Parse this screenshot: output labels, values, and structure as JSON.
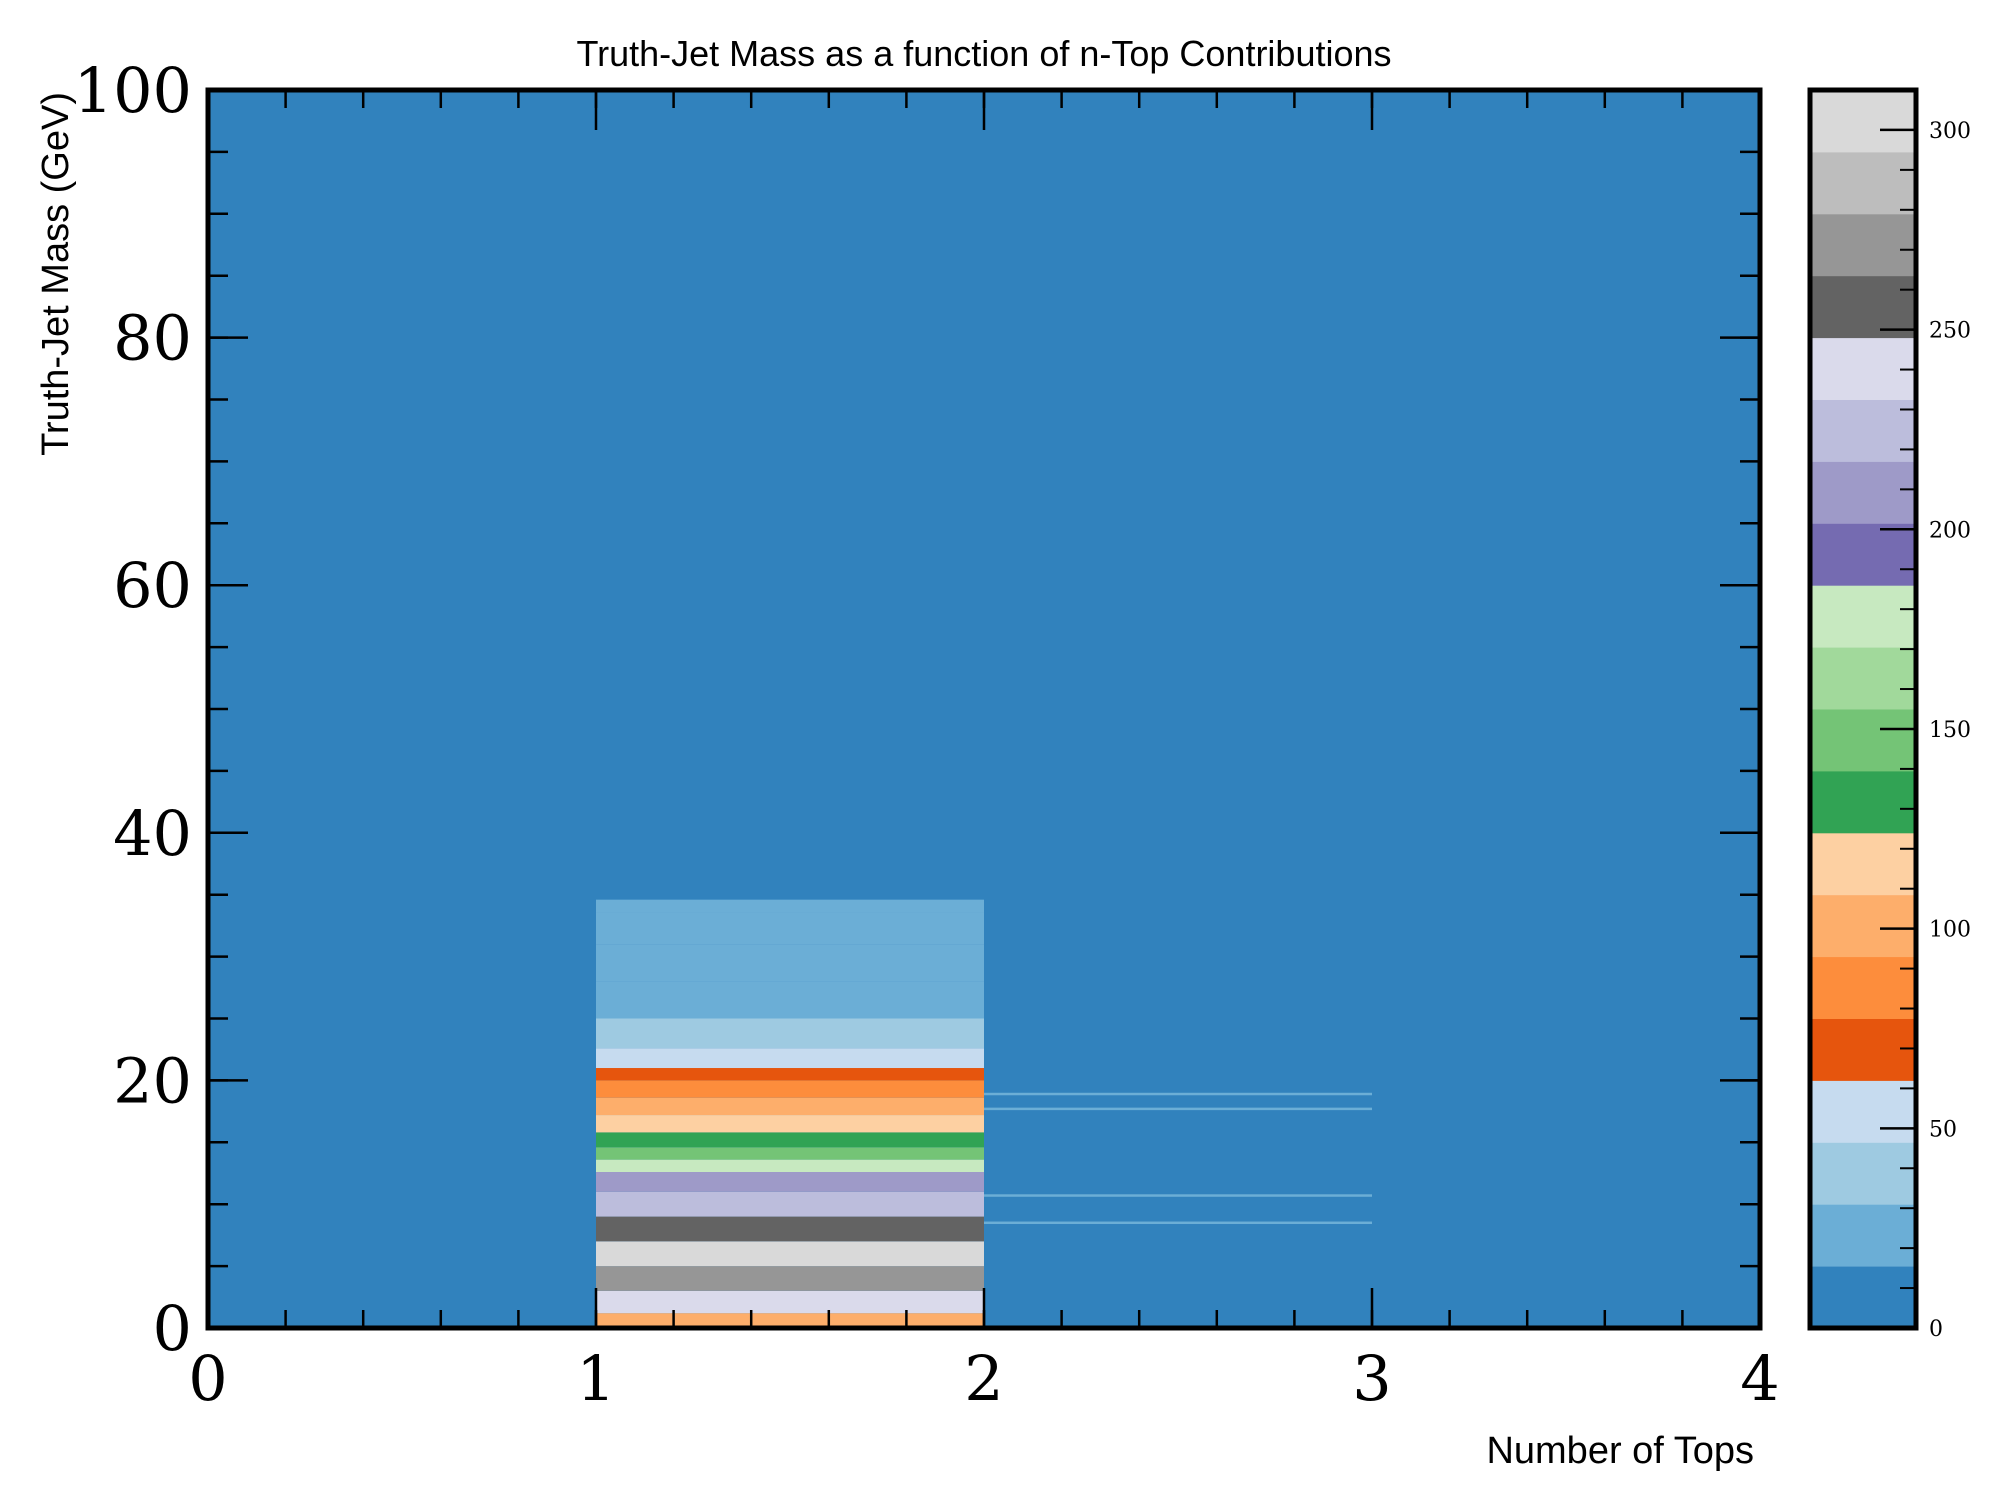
{
  "chart_data": {
    "type": "heatmap",
    "title": "Truth-Jet Mass as a function of n-Top Contributions",
    "xlabel": "Number of Tops",
    "ylabel": "Truth-Jet Mass (GeV)",
    "xlim": [
      0,
      4
    ],
    "ylim": [
      0,
      100
    ],
    "x_ticks": [
      "0",
      "1",
      "2",
      "3",
      "4"
    ],
    "y_ticks": [
      "0",
      "20",
      "40",
      "60",
      "80",
      "100"
    ],
    "x_bin_edges": [
      0,
      1,
      2,
      3,
      4
    ],
    "y_bin_width": 0.2,
    "background_count": 0,
    "colorbar": {
      "range": [
        0,
        310
      ],
      "ticks": [
        "0",
        "50",
        "100",
        "150",
        "200",
        "250",
        "300"
      ],
      "colormap": "tab20c",
      "colors": [
        "#3182bd",
        "#6baed6",
        "#9ecae1",
        "#c6dbef",
        "#e6550d",
        "#fd8d3c",
        "#fdae6b",
        "#fdd0a2",
        "#31a354",
        "#74c476",
        "#a1d99b",
        "#c7e9c0",
        "#756bb1",
        "#9e9ac8",
        "#bcbddc",
        "#dadaeb",
        "#636363",
        "#969696",
        "#bdbdbd",
        "#d9d9d9"
      ]
    },
    "cells": [
      {
        "x_bin": [
          1,
          2
        ],
        "y_range": [
          0.0,
          1.2
        ],
        "count": 105
      },
      {
        "x_bin": [
          1,
          2
        ],
        "y_range": [
          1.2,
          3.0
        ],
        "count": 235
      },
      {
        "x_bin": [
          1,
          2
        ],
        "y_range": [
          3.0,
          5.0
        ],
        "count": 270
      },
      {
        "x_bin": [
          1,
          2
        ],
        "y_range": [
          5.0,
          7.0
        ],
        "count": 300
      },
      {
        "x_bin": [
          1,
          2
        ],
        "y_range": [
          7.0,
          9.0
        ],
        "count": 255
      },
      {
        "x_bin": [
          1,
          2
        ],
        "y_range": [
          9.0,
          11.0
        ],
        "count": 225
      },
      {
        "x_bin": [
          1,
          2
        ],
        "y_range": [
          11.0,
          12.6
        ],
        "count": 205
      },
      {
        "x_bin": [
          1,
          2
        ],
        "y_range": [
          12.6,
          13.6
        ],
        "count": 175
      },
      {
        "x_bin": [
          1,
          2
        ],
        "y_range": [
          13.6,
          14.6
        ],
        "count": 150
      },
      {
        "x_bin": [
          1,
          2
        ],
        "y_range": [
          14.6,
          15.8
        ],
        "count": 135
      },
      {
        "x_bin": [
          1,
          2
        ],
        "y_range": [
          15.8,
          17.2
        ],
        "count": 115
      },
      {
        "x_bin": [
          1,
          2
        ],
        "y_range": [
          17.2,
          18.6
        ],
        "count": 100
      },
      {
        "x_bin": [
          1,
          2
        ],
        "y_range": [
          18.6,
          20.0
        ],
        "count": 85
      },
      {
        "x_bin": [
          1,
          2
        ],
        "y_range": [
          20.0,
          21.0
        ],
        "count": 68
      },
      {
        "x_bin": [
          1,
          2
        ],
        "y_range": [
          21.0,
          22.6
        ],
        "count": 55
      },
      {
        "x_bin": [
          1,
          2
        ],
        "y_range": [
          22.6,
          25.0
        ],
        "count": 40
      },
      {
        "x_bin": [
          1,
          2
        ],
        "y_range": [
          25.0,
          28.0
        ],
        "count": 28
      },
      {
        "x_bin": [
          1,
          2
        ],
        "y_range": [
          28.0,
          31.0
        ],
        "count": 22
      },
      {
        "x_bin": [
          1,
          2
        ],
        "y_range": [
          31.0,
          33.6
        ],
        "count": 18
      },
      {
        "x_bin": [
          1,
          2
        ],
        "y_range": [
          33.6,
          34.6
        ],
        "count": 16
      },
      {
        "x_bin": [
          2,
          3
        ],
        "y_range": [
          8.4,
          8.6
        ],
        "count": 20
      },
      {
        "x_bin": [
          2,
          3
        ],
        "y_range": [
          10.6,
          10.8
        ],
        "count": 20
      },
      {
        "x_bin": [
          2,
          3
        ],
        "y_range": [
          17.6,
          17.8
        ],
        "count": 20
      },
      {
        "x_bin": [
          2,
          3
        ],
        "y_range": [
          18.8,
          19.0
        ],
        "count": 20
      }
    ]
  }
}
